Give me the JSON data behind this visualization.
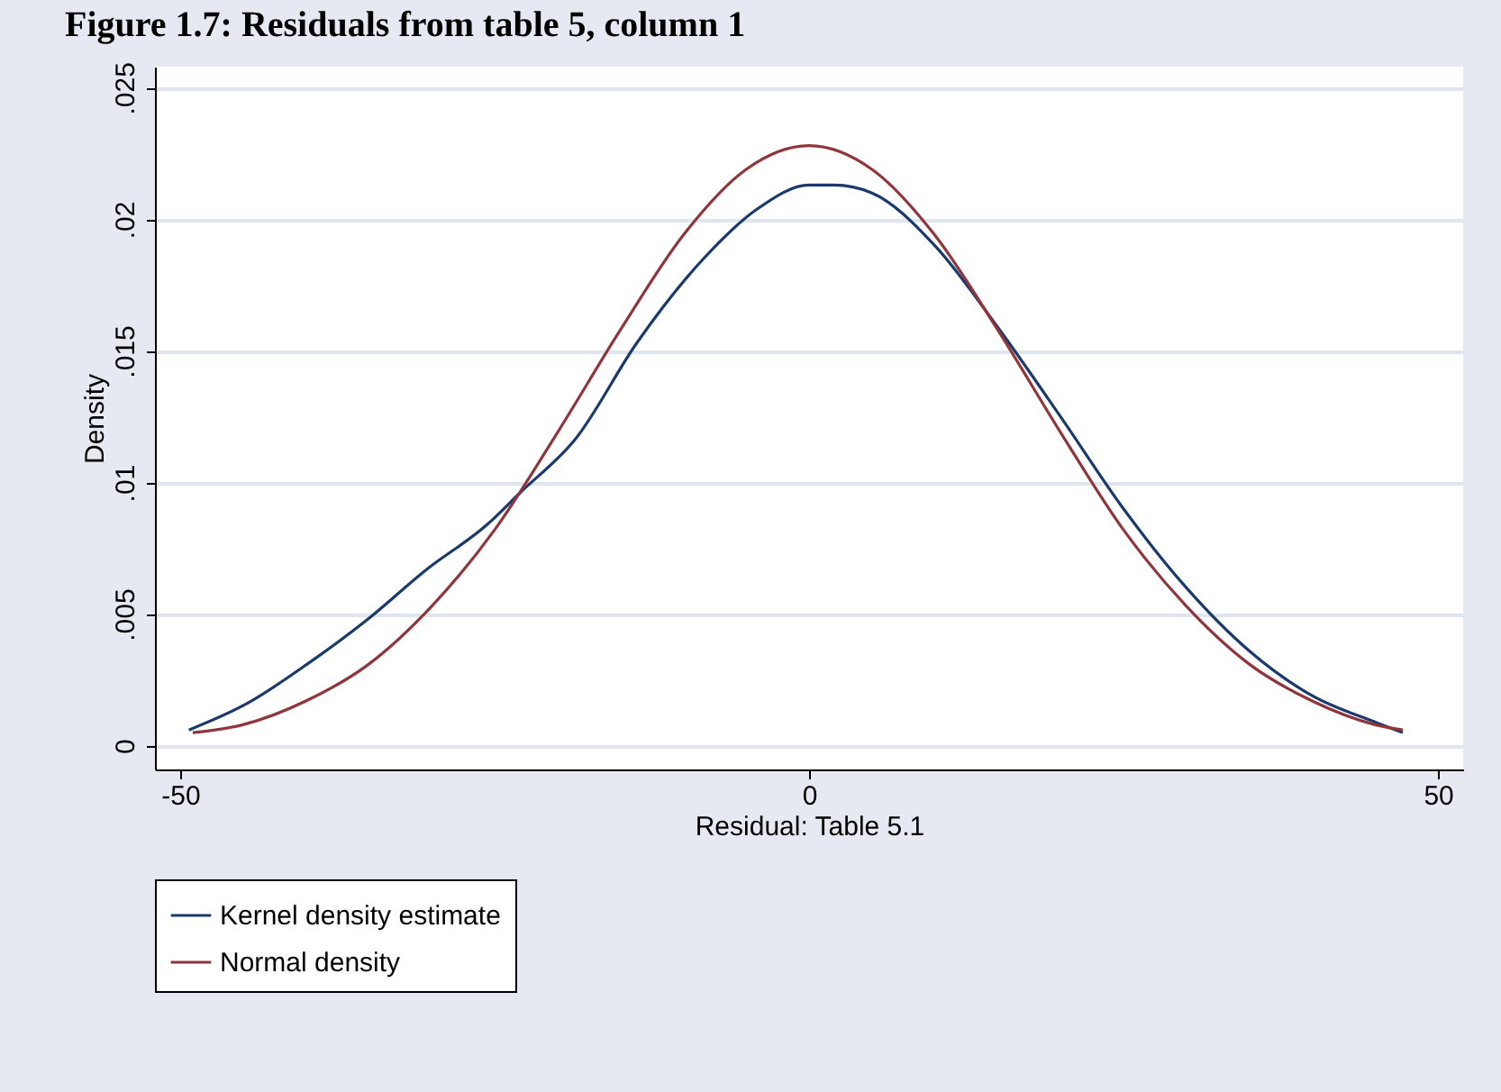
{
  "chart_data": {
    "type": "line",
    "title": "Figure 1.7:      Residuals from table 5, column 1",
    "xlabel": "Residual: Table 5.1",
    "ylabel": "Density",
    "xlim": [
      -52,
      52
    ],
    "ylim": [
      -0.0009,
      0.0258
    ],
    "xticks": [
      -50,
      0,
      50
    ],
    "yticks": [
      0,
      {
        "value": 0.005,
        "label": ".005"
      },
      {
        "value": 0.01,
        "label": ".01"
      },
      {
        "value": 0.015,
        "label": ".015"
      },
      {
        "value": 0.02,
        "label": ".02"
      },
      {
        "value": 0.025,
        "label": ".025"
      }
    ],
    "grid": "y",
    "legend": "bottom",
    "line_style": "solid",
    "series": [
      {
        "name": "Kernel density estimate",
        "color": "#1a3a6e",
        "x": [
          -49.3,
          -44.7,
          -39.9,
          -35.1,
          -30.4,
          -25.6,
          -23,
          -18.5,
          -13.7,
          -8.4,
          -4.1,
          0,
          2,
          5,
          10,
          15,
          20,
          25,
          30,
          35,
          40,
          45,
          47.2
        ],
        "values": [
          0.0006,
          0.0016,
          0.0031,
          0.0048,
          0.0067,
          0.0084,
          0.0096,
          0.0117,
          0.0153,
          0.0185,
          0.0204,
          0.0213,
          0.0213,
          0.021,
          0.019,
          0.0159,
          0.0125,
          0.009,
          0.006,
          0.0036,
          0.0019,
          0.0009,
          0.0005
        ]
      },
      {
        "name": "Normal density",
        "color": "#90353b",
        "x": [
          -49,
          -45,
          -40,
          -35,
          -30,
          -25,
          -20,
          -15,
          -10,
          -5,
          0,
          5,
          10,
          15,
          20,
          25,
          30,
          35,
          40,
          45,
          47.2
        ],
        "values": [
          0.0005,
          0.0008,
          0.0017,
          0.0031,
          0.0053,
          0.0082,
          0.0119,
          0.0158,
          0.0194,
          0.0219,
          0.0228,
          0.0219,
          0.0194,
          0.0158,
          0.0119,
          0.0082,
          0.0053,
          0.0031,
          0.0017,
          0.0008,
          0.0006
        ]
      }
    ]
  }
}
